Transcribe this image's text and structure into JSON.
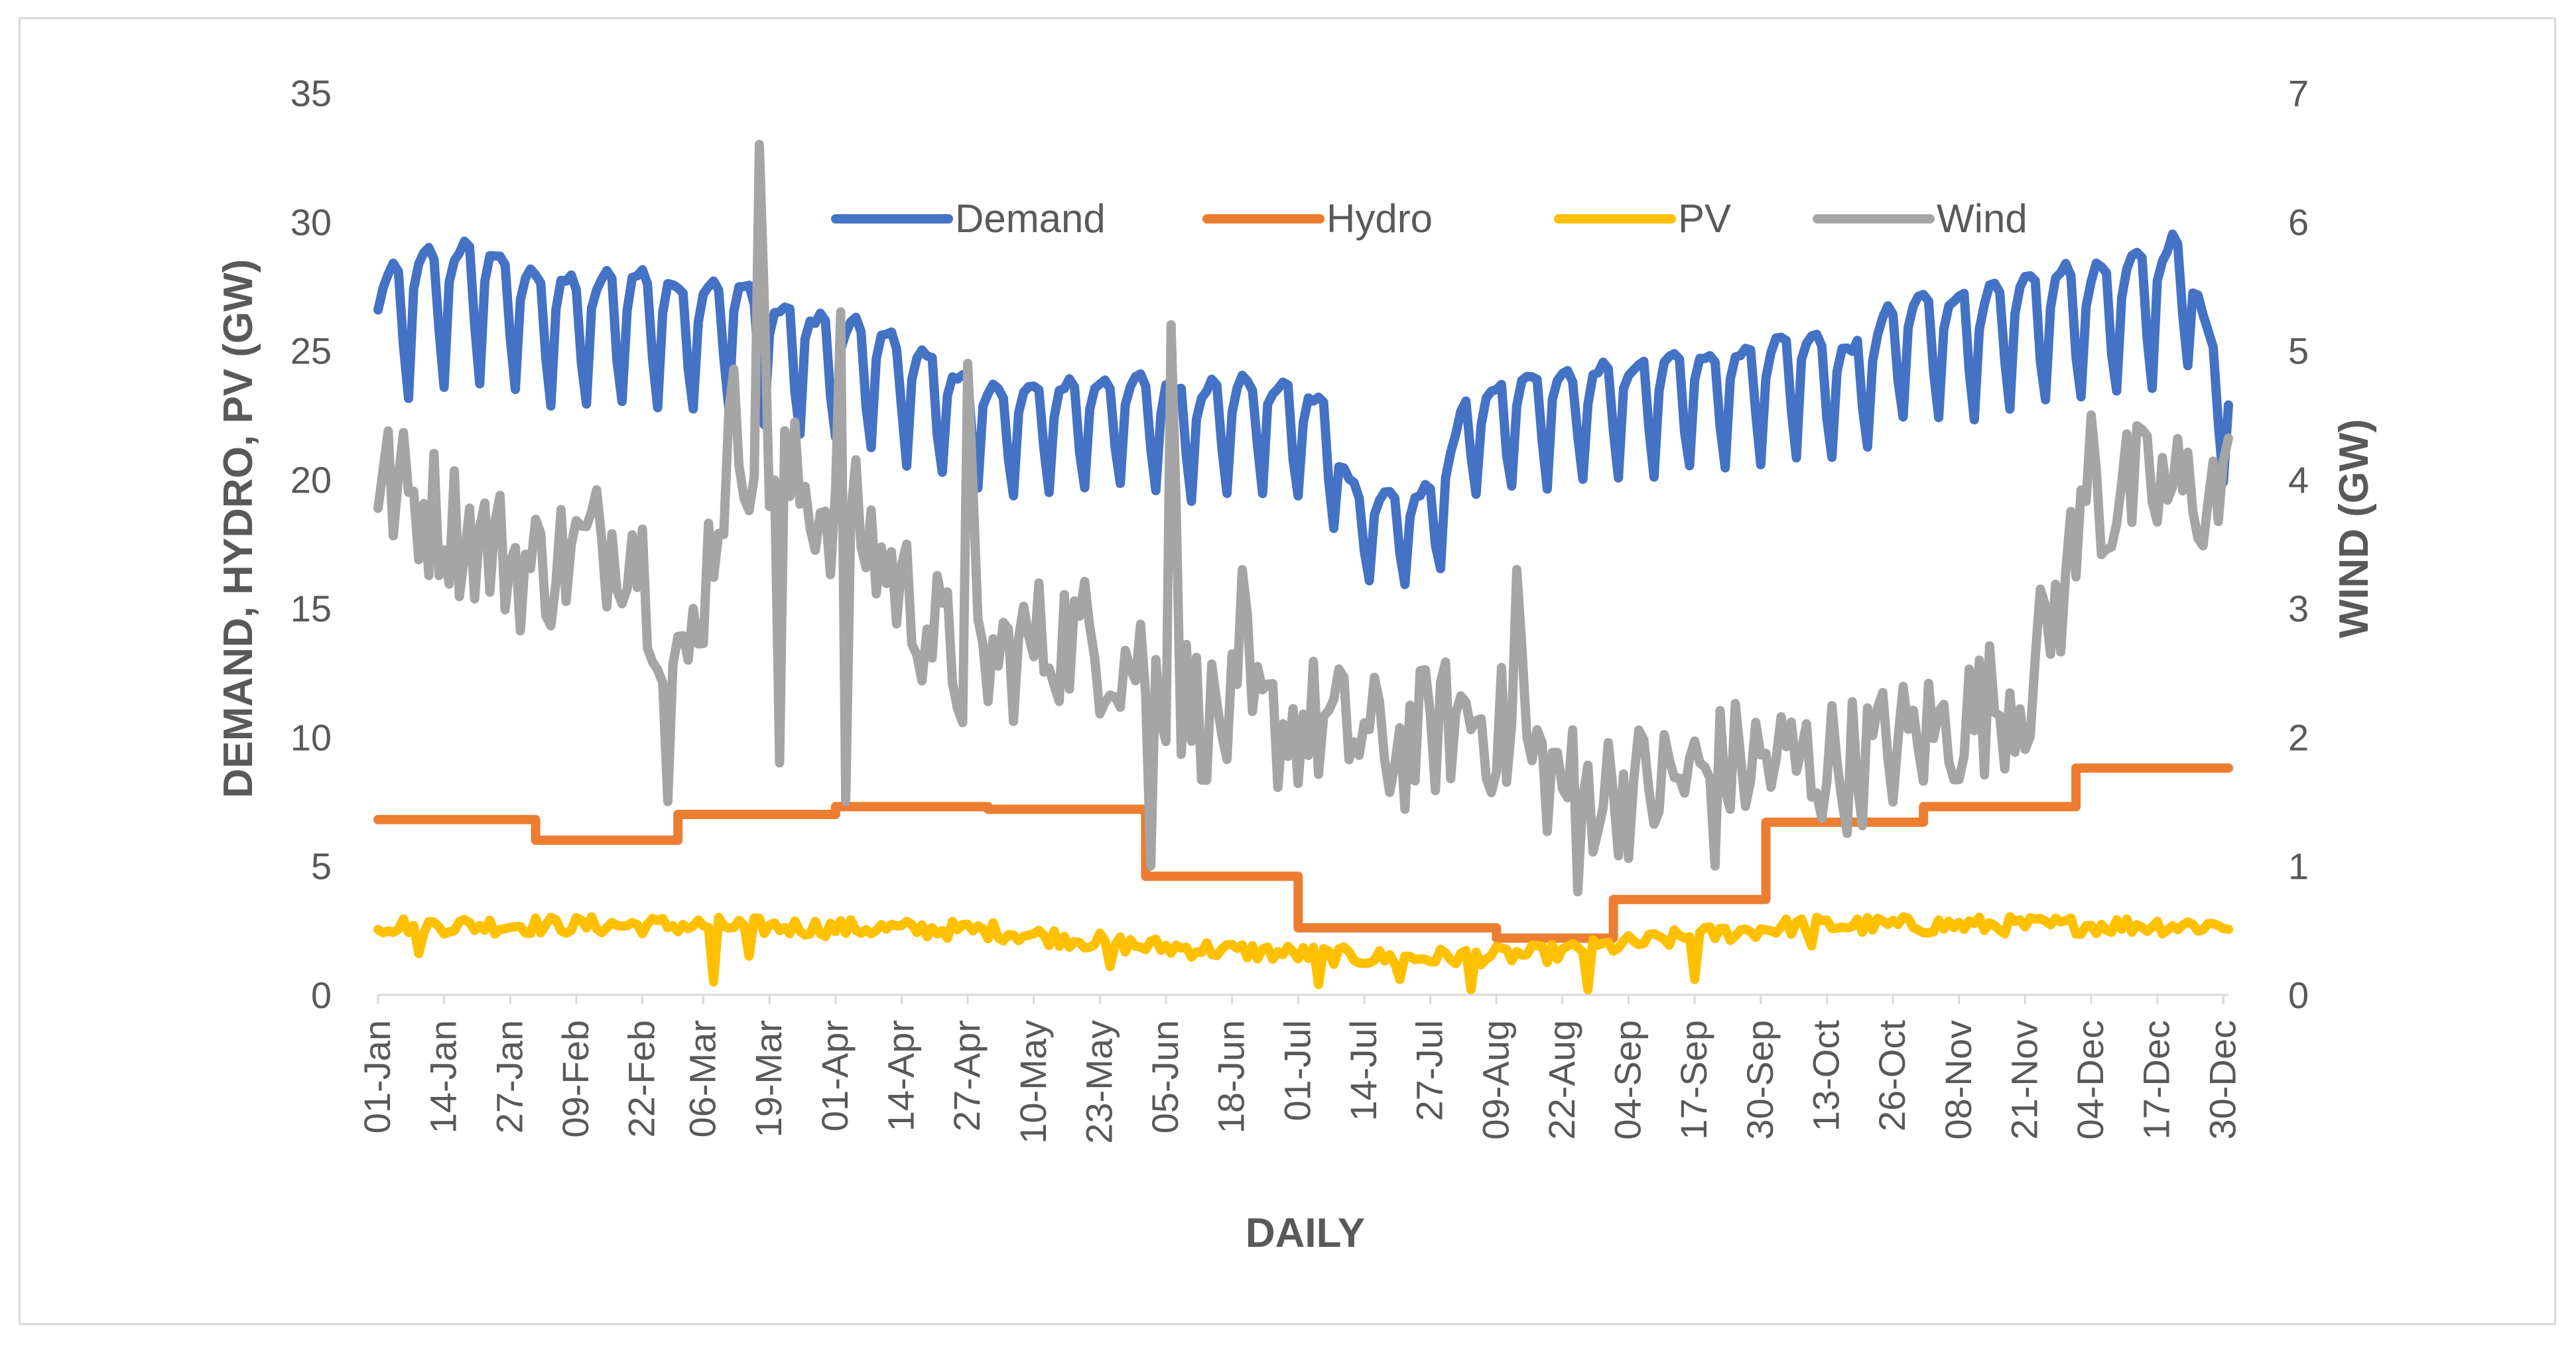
{
  "chart_data": {
    "type": "line",
    "title": "",
    "xlabel": "DAILY",
    "ylabel": "DEMAND, HYDRO, PV (GW)",
    "y2label": "WIND (GW)",
    "ylim": [
      0,
      35
    ],
    "y2lim": [
      0,
      7
    ],
    "yticks": [
      "0",
      "5",
      "10",
      "15",
      "20",
      "25",
      "30",
      "35"
    ],
    "y2ticks": [
      "0",
      "1",
      "2",
      "3",
      "4",
      "5",
      "6",
      "7"
    ],
    "x_tick_labels": [
      "01-Jan",
      "14-Jan",
      "27-Jan",
      "09-Feb",
      "22-Feb",
      "06-Mar",
      "19-Mar",
      "01-Apr",
      "14-Apr",
      "27-Apr",
      "10-May",
      "23-May",
      "05-Jun",
      "18-Jun",
      "01-Jul",
      "14-Jul",
      "27-Jul",
      "09-Aug",
      "22-Aug",
      "04-Sep",
      "17-Sep",
      "30-Sep",
      "13-Oct",
      "26-Oct",
      "08-Nov",
      "21-Nov",
      "04-Dec",
      "17-Dec",
      "30-Dec"
    ],
    "x_tick_days": [
      0,
      13,
      26,
      39,
      52,
      64,
      77,
      90,
      103,
      116,
      129,
      142,
      155,
      168,
      181,
      194,
      207,
      220,
      233,
      246,
      259,
      272,
      285,
      298,
      311,
      324,
      337,
      350,
      363
    ],
    "legend_position": "top-center",
    "grid": false,
    "series": [
      {
        "name": "Demand",
        "axis": "left",
        "color": "#4472C4",
        "kind": "weekly",
        "weekday_pattern": [
          1.0,
          1.035,
          1.045,
          1.05,
          1.04,
          0.93,
          0.86
        ],
        "anchors": [
          [
            0,
            26.5
          ],
          [
            10,
            27.5
          ],
          [
            20,
            27.8
          ],
          [
            30,
            26.8
          ],
          [
            40,
            26.4
          ],
          [
            50,
            26.8
          ],
          [
            60,
            26.3
          ],
          [
            70,
            26.5
          ],
          [
            78,
            25.5
          ],
          [
            90,
            25.0
          ],
          [
            100,
            24.5
          ],
          [
            110,
            23.5
          ],
          [
            120,
            22.5
          ],
          [
            130,
            22.5
          ],
          [
            140,
            22.8
          ],
          [
            152,
            22.8
          ],
          [
            160,
            22.5
          ],
          [
            170,
            22.8
          ],
          [
            178,
            22.6
          ],
          [
            186,
            22.0
          ],
          [
            192,
            18.8
          ],
          [
            200,
            18.5
          ],
          [
            208,
            18.7
          ],
          [
            214,
            22.2
          ],
          [
            225,
            22.8
          ],
          [
            240,
            23.2
          ],
          [
            255,
            23.6
          ],
          [
            270,
            24.0
          ],
          [
            280,
            24.5
          ],
          [
            290,
            24.0
          ],
          [
            300,
            25.8
          ],
          [
            312,
            26.0
          ],
          [
            320,
            26.2
          ],
          [
            330,
            26.8
          ],
          [
            342,
            27.0
          ],
          [
            350,
            27.6
          ],
          [
            356,
            28.3
          ],
          [
            360,
            24.5
          ],
          [
            364,
            23.0
          ]
        ]
      },
      {
        "name": "Hydro",
        "axis": "left",
        "color": "#ED7D31",
        "kind": "step",
        "steps": [
          [
            0,
            6.8
          ],
          [
            31,
            6.0
          ],
          [
            59,
            7.0
          ],
          [
            90,
            7.3
          ],
          [
            120,
            7.2
          ],
          [
            151,
            4.6
          ],
          [
            181,
            2.6
          ],
          [
            212,
            2.6
          ],
          [
            220,
            2.2
          ],
          [
            243,
            3.7
          ],
          [
            273,
            6.7
          ],
          [
            304,
            7.3
          ],
          [
            334,
            8.8
          ],
          [
            365,
            8.8
          ]
        ]
      },
      {
        "name": "PV",
        "axis": "left",
        "color": "#FFC000",
        "kind": "noisy",
        "base": [
          [
            0,
            2.7
          ],
          [
            60,
            2.7
          ],
          [
            120,
            2.5
          ],
          [
            150,
            1.9
          ],
          [
            200,
            1.4
          ],
          [
            230,
            1.6
          ],
          [
            260,
            2.3
          ],
          [
            280,
            2.7
          ],
          [
            365,
            2.7
          ]
        ],
        "noise": 0.35,
        "dips": [
          [
            8,
            1.6
          ],
          [
            66,
            0.5
          ],
          [
            73,
            1.5
          ],
          [
            144,
            1.1
          ],
          [
            185,
            0.4
          ],
          [
            201,
            0.6
          ],
          [
            215,
            0.2
          ],
          [
            238,
            0.2
          ],
          [
            259,
            0.6
          ],
          [
            282,
            1.9
          ]
        ]
      },
      {
        "name": "Wind",
        "axis": "right",
        "color": "#A5A5A5",
        "kind": "noisy",
        "base": [
          [
            0,
            4.0
          ],
          [
            30,
            3.3
          ],
          [
            50,
            3.6
          ],
          [
            60,
            2.4
          ],
          [
            70,
            4.4
          ],
          [
            80,
            4.0
          ],
          [
            95,
            3.6
          ],
          [
            115,
            2.5
          ],
          [
            135,
            2.8
          ],
          [
            150,
            2.6
          ],
          [
            165,
            2.1
          ],
          [
            185,
            2.1
          ],
          [
            200,
            1.9
          ],
          [
            215,
            2.2
          ],
          [
            235,
            1.6
          ],
          [
            250,
            1.6
          ],
          [
            270,
            1.8
          ],
          [
            290,
            1.8
          ],
          [
            310,
            2.1
          ],
          [
            325,
            2.4
          ],
          [
            335,
            3.6
          ],
          [
            345,
            3.9
          ],
          [
            365,
            3.9
          ]
        ],
        "noise": 0.55,
        "peaks": [
          [
            75,
            6.6
          ],
          [
            91,
            5.3
          ],
          [
            116,
            4.9
          ],
          [
            156,
            5.2
          ],
          [
            170,
            3.3
          ],
          [
            224,
            3.3
          ],
          [
            337,
            4.5
          ]
        ],
        "dips": [
          [
            57,
            1.5
          ],
          [
            79,
            1.8
          ],
          [
            92,
            1.5
          ],
          [
            152,
            1.0
          ],
          [
            236,
            0.8
          ],
          [
            263,
            1.0
          ]
        ]
      }
    ]
  }
}
